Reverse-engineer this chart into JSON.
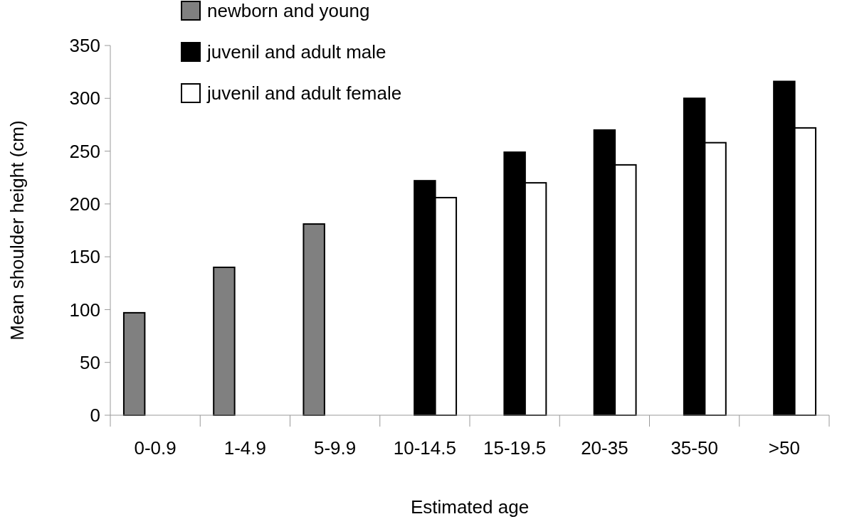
{
  "chart_data": {
    "type": "bar",
    "xlabel": "Estimated age",
    "ylabel": "Mean shoulder height (cm)",
    "categories": [
      "0-0.9",
      "1-4.9",
      "5-9.9",
      "10-14.5",
      "15-19.5",
      "20-35",
      "35-50",
      ">50"
    ],
    "series": [
      {
        "name": "newborn and young",
        "color": "#808080",
        "values": [
          97,
          140,
          181,
          null,
          null,
          null,
          null,
          null
        ]
      },
      {
        "name": "juvenil and adult male",
        "color": "#000000",
        "values": [
          null,
          null,
          null,
          222,
          249,
          270,
          300,
          316
        ]
      },
      {
        "name": "juvenil and adult female",
        "color": "#ffffff",
        "values": [
          null,
          null,
          null,
          206,
          220,
          237,
          258,
          272
        ]
      }
    ],
    "ylim": [
      0,
      350
    ],
    "yticks": [
      0,
      50,
      100,
      150,
      200,
      250,
      300,
      350
    ],
    "grid": false,
    "legend": "top left"
  }
}
